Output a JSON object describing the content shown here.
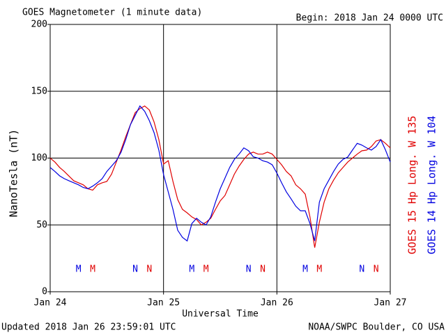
{
  "chart_data": {
    "type": "line",
    "title": "GOES Magnetometer (1 minute data)",
    "subtitle": "Begin:  2018 Jan 24 0000 UTC",
    "ylabel": "NanoTesla (nT)",
    "xlabel": "Universal Time",
    "footer_left": "Updated 2018 Jan 26 23:59:01 UTC",
    "footer_right": "NOAA/SWPC Boulder, CO USA",
    "xlim": [
      0,
      72
    ],
    "xticks": [
      {
        "value": 0,
        "label": "Jan 24"
      },
      {
        "value": 24,
        "label": "Jan 25"
      },
      {
        "value": 48,
        "label": "Jan 26"
      },
      {
        "value": 72,
        "label": "Jan 27"
      }
    ],
    "ylim": [
      0,
      200
    ],
    "yticks": [
      0,
      50,
      100,
      150,
      200
    ],
    "grid": true,
    "x": [
      0,
      1,
      2,
      3,
      4,
      5,
      6,
      7,
      8,
      9,
      10,
      11,
      12,
      13,
      14,
      15,
      16,
      17,
      18,
      19,
      20,
      21,
      22,
      23,
      24,
      25,
      26,
      27,
      28,
      29,
      30,
      31,
      32,
      33,
      34,
      35,
      36,
      37,
      38,
      39,
      40,
      41,
      42,
      43,
      44,
      45,
      46,
      47,
      48,
      49,
      50,
      51,
      52,
      53,
      54,
      55,
      56,
      57,
      58,
      59,
      60,
      61,
      62,
      63,
      64,
      65,
      66,
      67,
      68,
      69,
      70,
      71,
      72
    ],
    "series": [
      {
        "name": "GOES 15 Hp  Long. W 135",
        "color": "#e00000",
        "values": [
          100,
          97,
          93,
          90,
          86.5,
          83,
          81.5,
          80,
          77,
          76,
          80,
          81.5,
          82.5,
          88,
          97,
          106,
          116,
          125,
          134,
          137,
          139,
          136,
          127,
          114,
          95.5,
          98,
          82.5,
          69,
          61.6,
          59,
          56,
          54,
          50,
          52,
          55,
          61.6,
          68,
          72,
          80,
          88,
          94,
          99,
          103,
          104.5,
          103,
          103,
          104.5,
          103,
          99,
          95,
          90,
          86.7,
          80,
          77,
          73,
          56,
          33,
          52,
          67,
          77,
          83.5,
          89,
          93,
          97,
          100,
          103,
          105.5,
          106,
          108.6,
          112.8,
          113.8,
          111,
          107.6
        ]
      },
      {
        "name": "GOES 14 Hp  Long. W 104",
        "color": "#0000e0",
        "values": [
          93,
          90,
          86.7,
          84.6,
          83,
          81.5,
          80,
          78,
          77,
          79,
          81.5,
          84.6,
          90,
          94,
          98,
          104.4,
          113.8,
          125,
          132,
          139,
          135,
          128,
          119,
          106,
          87.7,
          74.7,
          61.6,
          46,
          40.7,
          38,
          51,
          55,
          52,
          50,
          56,
          67,
          77,
          85,
          93,
          99,
          103,
          107.6,
          105.5,
          101,
          100,
          98,
          97,
          95,
          88.8,
          81.5,
          74.7,
          69.5,
          64,
          60.6,
          60.6,
          51,
          38,
          67,
          77,
          83.5,
          90,
          95.5,
          99,
          100.8,
          106,
          111,
          109.7,
          107.6,
          106,
          108.6,
          113.8,
          106,
          97
        ]
      }
    ],
    "annotations": [
      {
        "text": "M",
        "x": 6,
        "color": "#0000e0"
      },
      {
        "text": "M",
        "x": 9,
        "color": "#e00000"
      },
      {
        "text": "N",
        "x": 18,
        "color": "#0000e0"
      },
      {
        "text": "N",
        "x": 21,
        "color": "#e00000"
      },
      {
        "text": "M",
        "x": 30,
        "color": "#0000e0"
      },
      {
        "text": "M",
        "x": 33,
        "color": "#e00000"
      },
      {
        "text": "N",
        "x": 42,
        "color": "#0000e0"
      },
      {
        "text": "N",
        "x": 45,
        "color": "#e00000"
      },
      {
        "text": "M",
        "x": 54,
        "color": "#0000e0"
      },
      {
        "text": "M",
        "x": 57,
        "color": "#e00000"
      },
      {
        "text": "N",
        "x": 66,
        "color": "#0000e0"
      },
      {
        "text": "N",
        "x": 69,
        "color": "#e00000"
      }
    ]
  }
}
